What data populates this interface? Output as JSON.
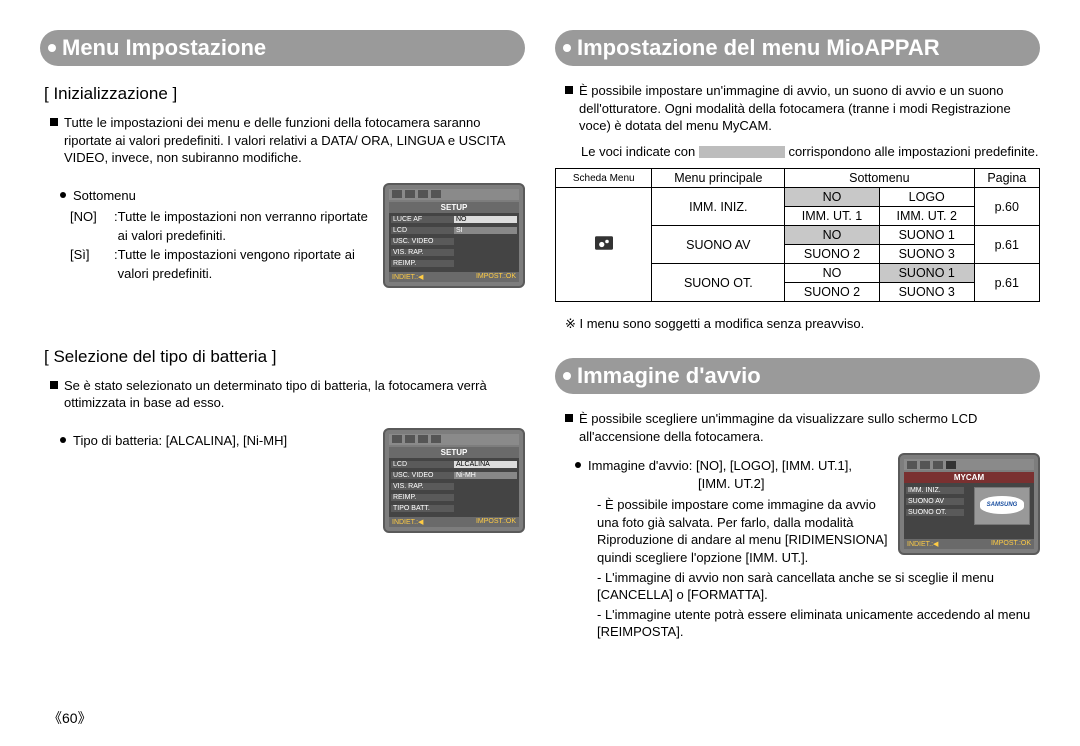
{
  "left": {
    "header": "Menu Impostazione",
    "sec1": {
      "title": "[ Inizializzazione ]",
      "paragraph": "Tutte le impostazioni dei menu e delle funzioni della fotocamera saranno riportate ai valori predefiniti. I valori relativi a DATA/ ORA, LINGUA e USCITA VIDEO, invece, non subiranno modifiche.",
      "sottomenu_label": "Sottomenu",
      "no_key": "[NO]",
      "no_val": "Tutte le impostazioni non verranno riportate ai valori predefiniti.",
      "si_key": "[Sì]",
      "si_val": "Tutte le impostazioni vengono riportate ai valori predefiniti.",
      "screenshot": {
        "title": "SETUP",
        "rows": [
          {
            "l": "LUCE AF",
            "v": "NO",
            "hl": true
          },
          {
            "l": "LCD",
            "v": "SI",
            "hl": false
          },
          {
            "l": "USC. VIDEO",
            "v": "",
            "hl": false
          },
          {
            "l": "VIS. RAP.",
            "v": "",
            "hl": false
          },
          {
            "l": "REIMP.",
            "v": "",
            "hl": false
          }
        ],
        "foot_l": "INDIET.:◀",
        "foot_r": "IMPOST.:OK"
      }
    },
    "sec2": {
      "title": "[ Selezione del tipo di batteria ]",
      "paragraph": "Se è stato selezionato un determinato tipo di batteria, la fotocamera verrà ottimizzata in base ad esso.",
      "tipo": "Tipo di batteria: [ALCALINA], [Ni-MH]",
      "screenshot": {
        "title": "SETUP",
        "rows": [
          {
            "l": "LCD",
            "v": "ALCALINA",
            "hl": true
          },
          {
            "l": "USC. VIDEO",
            "v": "Ni-MH",
            "hl": false
          },
          {
            "l": "VIS. RAP.",
            "v": "",
            "hl": false
          },
          {
            "l": "REIMP.",
            "v": "",
            "hl": false
          },
          {
            "l": "TIPO BATT.",
            "v": "",
            "hl": false
          }
        ],
        "foot_l": "INDIET.:◀",
        "foot_r": "IMPOST.:OK"
      }
    }
  },
  "right": {
    "header1": "Impostazione del menu MioAPPAR",
    "para1": "È possibile impostare un'immagine di avvio, un suono di avvio e un suono dell'otturatore. Ogni modalità della fotocamera (tranne i modi Registrazione voce) è dotata del menu MyCAM.",
    "chip_before": "Le voci indicate con",
    "chip_after": "corrispondono alle impostazioni predefinite.",
    "table": {
      "head": [
        "Scheda Menu",
        "Menu principale",
        "Sottomenu",
        "Pagina"
      ],
      "rows": [
        {
          "mp": "IMM. INIZ.",
          "s1": {
            "t": "NO",
            "shade": true
          },
          "s2": {
            "t": "LOGO",
            "shade": false
          },
          "p": "p.60",
          "sb1": {
            "t": "IMM. UT. 1"
          },
          "sb2": {
            "t": "IMM. UT. 2"
          }
        },
        {
          "mp": "SUONO AV",
          "s1": {
            "t": "NO",
            "shade": true
          },
          "s2": {
            "t": "SUONO 1",
            "shade": false
          },
          "p": "p.61",
          "sb1": {
            "t": "SUONO 2"
          },
          "sb2": {
            "t": "SUONO 3"
          }
        },
        {
          "mp": "SUONO OT.",
          "s1": {
            "t": "NO",
            "shade": false
          },
          "s2": {
            "t": "SUONO 1",
            "shade": true
          },
          "p": "p.61",
          "sb1": {
            "t": "SUONO 2"
          },
          "sb2": {
            "t": "SUONO 3"
          }
        }
      ]
    },
    "note": "※ I menu sono soggetti a modifica senza preavviso.",
    "header2": "Immagine d'avvio",
    "para2": "È possibile scegliere un'immagine da visualizzare sullo schermo LCD all'accensione della fotocamera.",
    "bullet_line1": "Immagine d'avvio: [NO], [LOGO], [IMM. UT.1],",
    "bullet_line2": "[IMM. UT.2]",
    "d1": "- È possibile impostare come immagine da avvio una foto già salvata. Per farlo, dalla modalità Riproduzione di andare al menu [RIDIMENSIONA] quindi scegliere l'opzione [IMM. UT.].",
    "d2": "- L'immagine di avvio non sarà cancellata anche se si sceglie il menu [CANCELLA] o [FORMATTA].",
    "d3": "- L'immagine utente potrà essere eliminata unicamente accedendo al menu [REIMPOSTA].",
    "screenshot": {
      "title": "MYCAM",
      "rows": [
        {
          "l": "IMM. INIZ.",
          "v": "",
          "hl": false
        },
        {
          "l": "SUONO AV",
          "v": "",
          "hl": false
        },
        {
          "l": "SUONO OT.",
          "v": "",
          "hl": false
        }
      ],
      "foot_l": "INDIET.:◀",
      "foot_r": "IMPOST.:OK"
    }
  },
  "pagenum": "60"
}
